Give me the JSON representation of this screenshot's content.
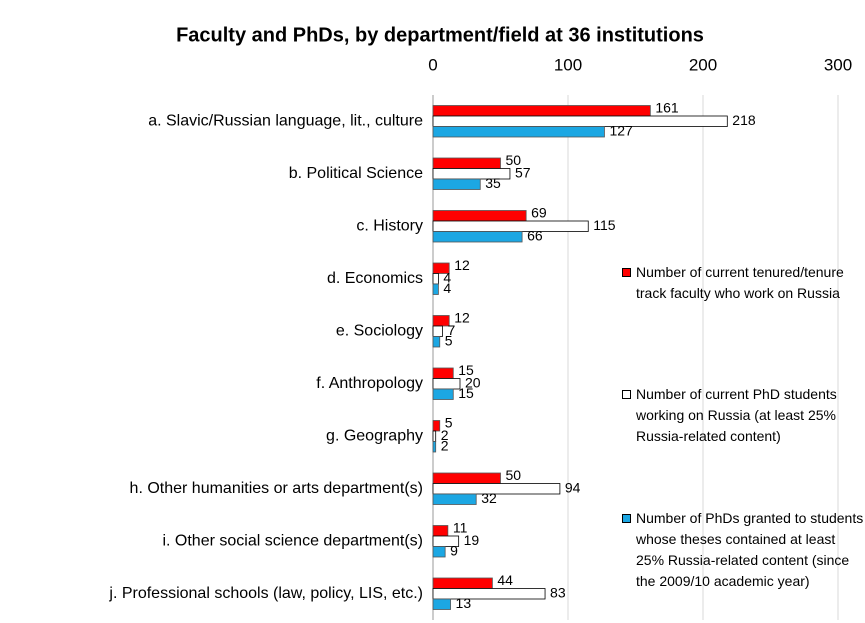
{
  "chart_data": {
    "type": "barh",
    "title": "Faculty and PhDs, by department/field at 36 institutions",
    "categories": [
      "a. Slavic/Russian language, lit., culture",
      "b. Political Science",
      "c. History",
      "d. Economics",
      "e. Sociology",
      "f. Anthropology",
      "g. Geography",
      "h. Other humanities or arts department(s)",
      "i. Other social science department(s)",
      "j. Professional schools (law, policy, LIS, etc.)"
    ],
    "series": [
      {
        "name": "Number of current tenured/tenure track faculty who work on Russia",
        "color": "#ff0000",
        "values": [
          161,
          50,
          69,
          12,
          12,
          15,
          5,
          50,
          11,
          44
        ]
      },
      {
        "name": "Number of current PhD students working on Russia (at least 25% Russia-related content)",
        "color": "#ffffff",
        "values": [
          218,
          57,
          115,
          4,
          7,
          20,
          2,
          94,
          19,
          83
        ]
      },
      {
        "name": "Number of PhDs granted to students whose theses contained at least 25% Russia-related content (since the 2009/10 academic year)",
        "color": "#1ca7e3",
        "values": [
          127,
          35,
          66,
          4,
          5,
          15,
          2,
          32,
          9,
          13
        ]
      }
    ],
    "xlim": [
      0,
      300
    ],
    "xticks": [
      0,
      100,
      200,
      300
    ],
    "grid": true,
    "legend": "right"
  }
}
